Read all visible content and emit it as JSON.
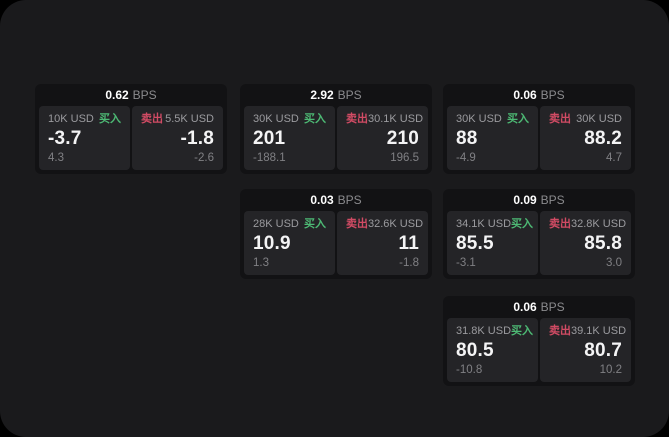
{
  "theme": {
    "panel_bg": "#1a1a1c",
    "card_bg": "#121214",
    "tile_bg": "#242427",
    "buy_color": "#4db974",
    "sell_color": "#d14b64"
  },
  "labels": {
    "buy": "买入",
    "sell": "卖出",
    "bps_unit": "BPS"
  },
  "cards": [
    {
      "bps_value": "0.62",
      "bps_unit": "BPS",
      "buy": {
        "amount": "10K USD",
        "side_label": "买入",
        "value": "-3.7",
        "sub_value": "4.3"
      },
      "sell": {
        "side_label": "卖出",
        "amount": "5.5K USD",
        "value": "-1.8",
        "sub_value": "-2.6"
      }
    },
    {
      "bps_value": "2.92",
      "bps_unit": "BPS",
      "buy": {
        "amount": "30K USD",
        "side_label": "买入",
        "value": "201",
        "sub_value": "-188.1"
      },
      "sell": {
        "side_label": "卖出",
        "amount": "30.1K USD",
        "value": "210",
        "sub_value": "196.5"
      }
    },
    {
      "bps_value": "0.06",
      "bps_unit": "BPS",
      "buy": {
        "amount": "30K USD",
        "side_label": "买入",
        "value": "88",
        "sub_value": "-4.9"
      },
      "sell": {
        "side_label": "卖出",
        "amount": "30K USD",
        "value": "88.2",
        "sub_value": "4.7"
      }
    },
    {
      "bps_value": "0.03",
      "bps_unit": "BPS",
      "buy": {
        "amount": "28K USD",
        "side_label": "买入",
        "value": "10.9",
        "sub_value": "1.3"
      },
      "sell": {
        "side_label": "卖出",
        "amount": "32.6K USD",
        "value": "11",
        "sub_value": "-1.8"
      }
    },
    {
      "bps_value": "0.09",
      "bps_unit": "BPS",
      "buy": {
        "amount": "34.1K USD",
        "side_label": "买入",
        "value": "85.5",
        "sub_value": "-3.1"
      },
      "sell": {
        "side_label": "卖出",
        "amount": "32.8K USD",
        "value": "85.8",
        "sub_value": "3.0"
      }
    },
    {
      "bps_value": "0.06",
      "bps_unit": "BPS",
      "buy": {
        "amount": "31.8K USD",
        "side_label": "买入",
        "value": "80.5",
        "sub_value": "-10.8"
      },
      "sell": {
        "side_label": "卖出",
        "amount": "39.1K USD",
        "value": "80.7",
        "sub_value": "10.2"
      }
    }
  ]
}
